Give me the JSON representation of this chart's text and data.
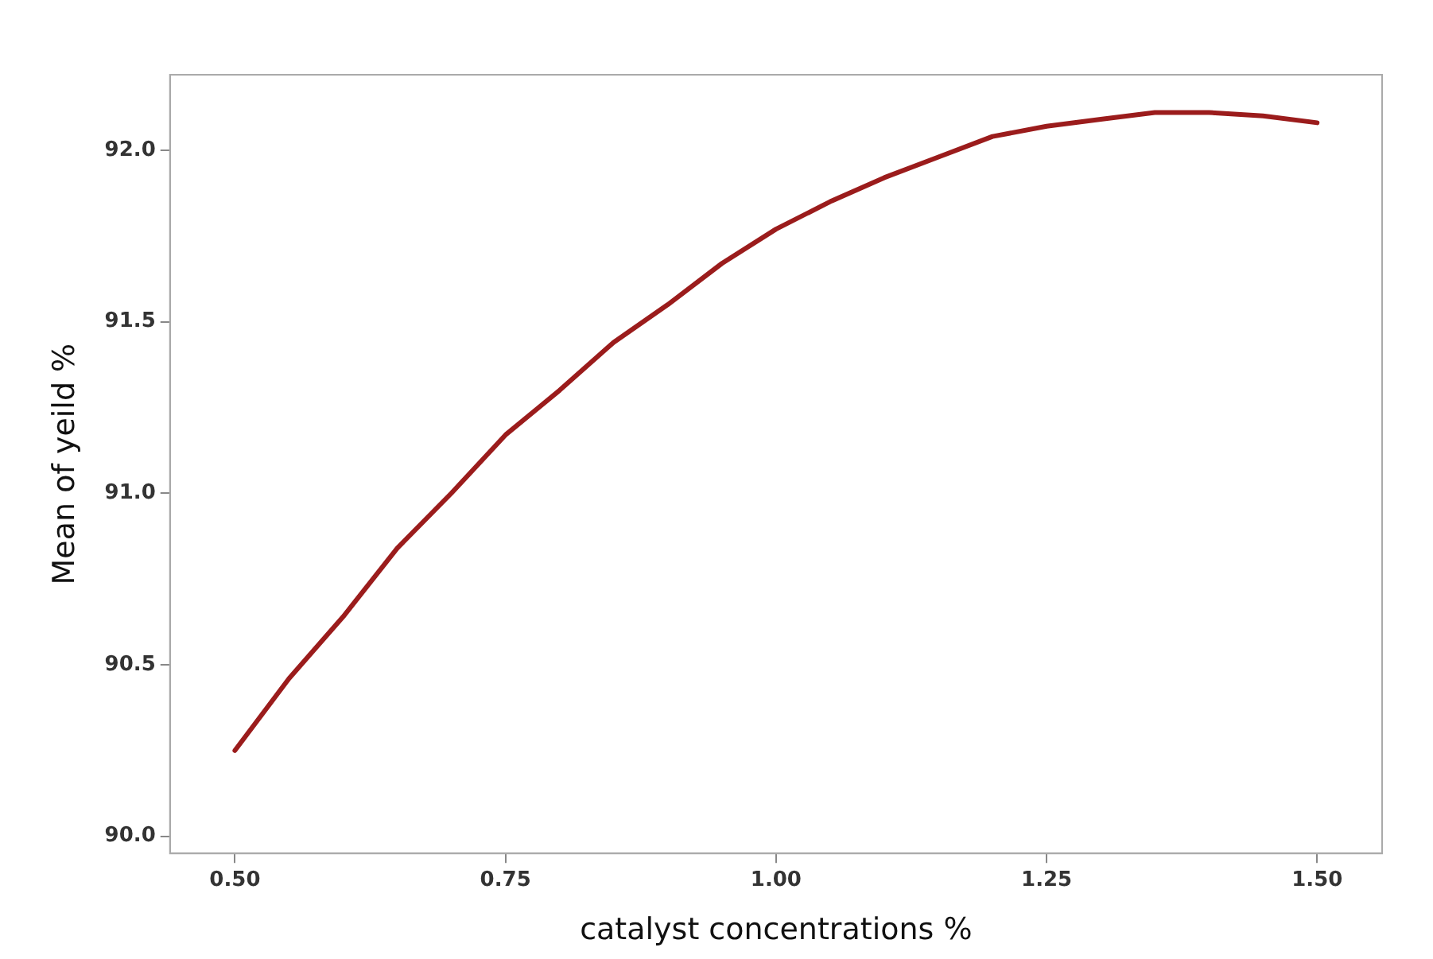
{
  "chart_data": {
    "type": "line",
    "xlabel": "catalyst concentrations %",
    "ylabel": "Mean of yeild %",
    "x": [
      0.5,
      0.55,
      0.6,
      0.65,
      0.7,
      0.75,
      0.8,
      0.85,
      0.9,
      0.95,
      1.0,
      1.05,
      1.1,
      1.15,
      1.2,
      1.25,
      1.3,
      1.35,
      1.4,
      1.45,
      1.5
    ],
    "series": [
      {
        "color": "#9b1c1c",
        "values": [
          90.25,
          90.46,
          90.64,
          90.84,
          91.0,
          91.17,
          91.3,
          91.44,
          91.55,
          91.67,
          91.77,
          91.85,
          91.92,
          91.98,
          92.04,
          92.07,
          92.09,
          92.11,
          92.11,
          92.1,
          92.08
        ]
      }
    ],
    "xlim": [
      0.44,
      1.56
    ],
    "ylim": [
      89.95,
      92.22
    ],
    "xticks": [
      {
        "value": 0.5,
        "label": "0.50"
      },
      {
        "value": 0.75,
        "label": "0.75"
      },
      {
        "value": 1.0,
        "label": "1.00"
      },
      {
        "value": 1.25,
        "label": "1.25"
      },
      {
        "value": 1.5,
        "label": "1.50"
      }
    ],
    "yticks": [
      {
        "value": 90,
        "label": "90.0"
      },
      {
        "value": 90.5,
        "label": "90.5"
      },
      {
        "value": 91,
        "label": "91.0"
      },
      {
        "value": 91.5,
        "label": "91.5"
      },
      {
        "value": 92,
        "label": "92.0"
      }
    ],
    "grid": false,
    "legend": false,
    "marker": "none",
    "line_style": "solid"
  }
}
